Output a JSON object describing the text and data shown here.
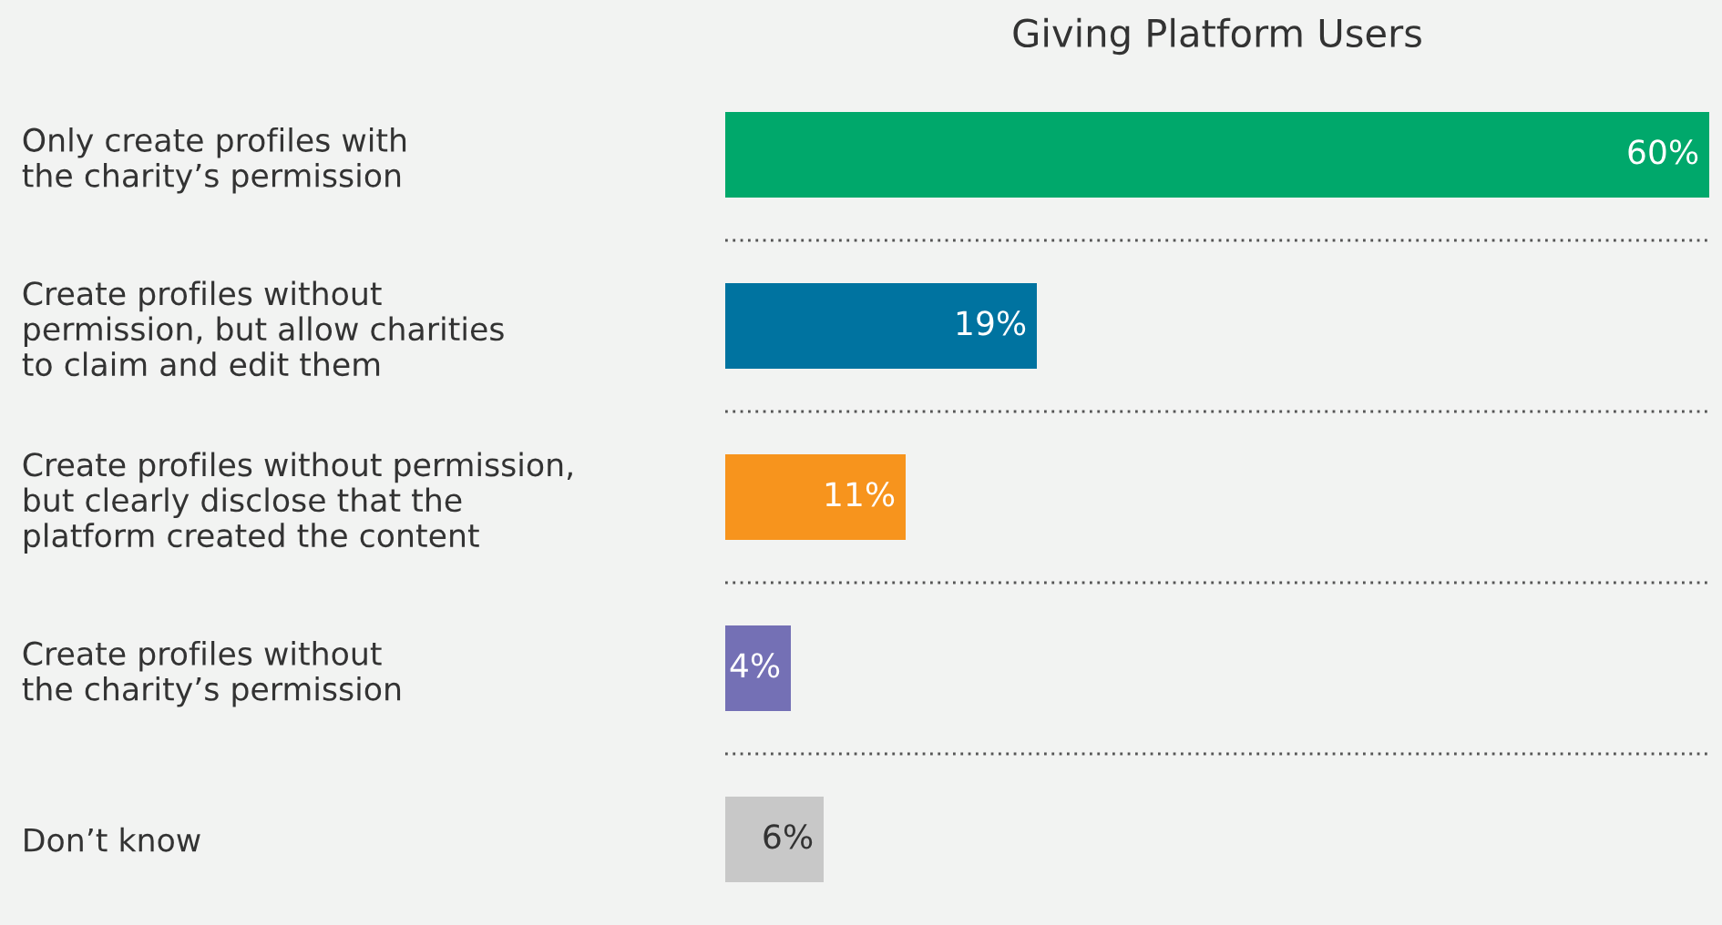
{
  "chart_data": {
    "type": "bar",
    "orientation": "horizontal",
    "title": "Giving Platform Users",
    "categories": [
      "Only create profiles with\nthe charity’s permission",
      "Create profiles without\npermission, but allow charities\nto claim and edit them",
      "Create profiles without permission,\nbut clearly disclose that the\nplatform created the content",
      "Create profiles without\nthe charity’s permission",
      "Don’t know"
    ],
    "values": [
      60,
      19,
      11,
      4,
      6
    ],
    "colors": [
      "#00a86b",
      "#0073a0",
      "#f7941d",
      "#7470b5",
      "#c8c8c8"
    ],
    "value_labels": [
      "60%",
      "19%",
      "11%",
      "4%",
      "6%"
    ],
    "grid": "y"
  }
}
